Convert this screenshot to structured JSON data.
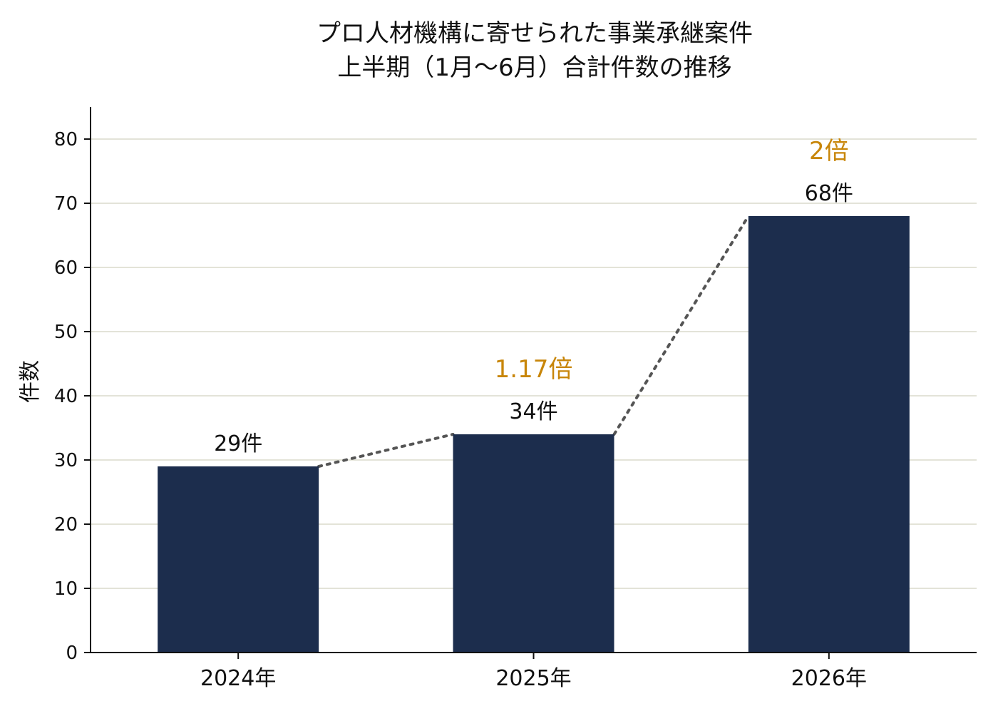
{
  "chart_data": {
    "type": "bar",
    "title": [
      "プロ人材機構に寄せられた事業承継案件",
      "上半期（1月〜6月）合計件数の推移"
    ],
    "xlabel": "",
    "ylabel": "件数",
    "categories": [
      "2024年",
      "2025年",
      "2026年"
    ],
    "values": [
      29,
      34,
      68
    ],
    "value_labels": [
      "29件",
      "34件",
      "68件"
    ],
    "ratio_labels": [
      "",
      "1.17倍",
      "2倍"
    ],
    "ylim": [
      0,
      85
    ],
    "yticks": [
      0,
      10,
      20,
      30,
      40,
      50,
      60,
      70,
      80
    ],
    "grid": "horizontal",
    "connector_line": "dotted",
    "colors": {
      "bar": "#1c2d4d",
      "ratio": "#c8860a",
      "grid": "#e3e3d8",
      "connector": "#555555",
      "axis": "#111111"
    }
  }
}
